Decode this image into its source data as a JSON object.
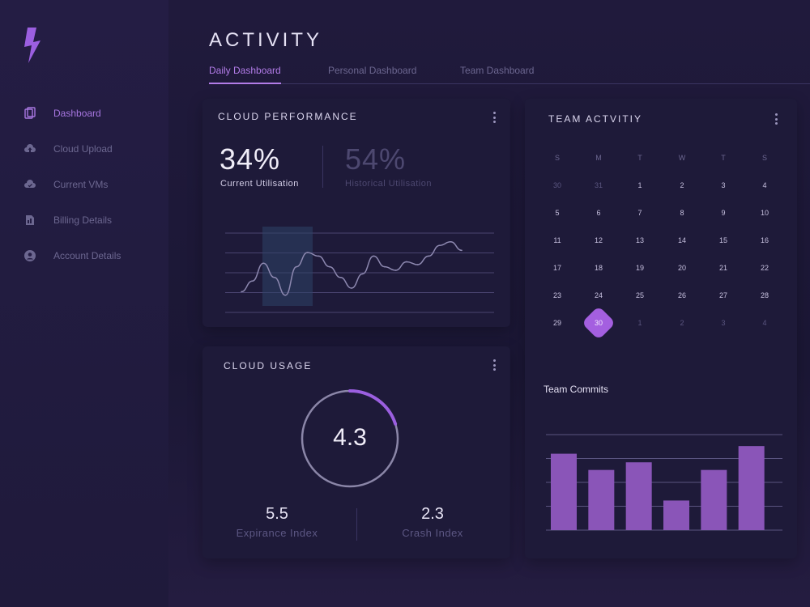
{
  "sidebar": {
    "items": [
      {
        "label": "Dashboard",
        "icon": "copy-icon",
        "active": true
      },
      {
        "label": "Cloud Upload",
        "icon": "cloud-upload-icon",
        "active": false
      },
      {
        "label": "Current VMs",
        "icon": "cloud-icon",
        "active": false
      },
      {
        "label": "Billing Details",
        "icon": "document-icon",
        "active": false
      },
      {
        "label": "Account Details",
        "icon": "user-circle-icon",
        "active": false
      }
    ]
  },
  "header": {
    "title": "ACTIVITY",
    "tabs": [
      {
        "label": "Daily Dashboard",
        "active": true
      },
      {
        "label": "Personal Dashboard",
        "active": false
      },
      {
        "label": "Team Dashboard",
        "active": false
      }
    ]
  },
  "cloud_performance": {
    "title": "CLOUD PERFORMANCE",
    "current_value": "34%",
    "current_label": "Current Utilisation",
    "historical_value": "54%",
    "historical_label": "Historical Utilisation"
  },
  "cloud_usage": {
    "title": "CLOUD USAGE",
    "gauge_value": "4.3",
    "gauge_fraction": 0.2,
    "expirance_value": "5.5",
    "expirance_label": "Expirance Index",
    "crash_value": "2.3",
    "crash_label": "Crash Index"
  },
  "team_activity": {
    "title": "TEAM ACTVITIY",
    "weekdays": [
      "S",
      "M",
      "T",
      "W",
      "T",
      "S"
    ],
    "weeks": [
      [
        "30",
        "31",
        "1",
        "2",
        "3",
        "4"
      ],
      [
        "5",
        "6",
        "7",
        "8",
        "9",
        "10"
      ],
      [
        "11",
        "12",
        "13",
        "14",
        "15",
        "16"
      ],
      [
        "17",
        "18",
        "19",
        "20",
        "21",
        "22"
      ],
      [
        "23",
        "24",
        "25",
        "26",
        "27",
        "28"
      ],
      [
        "29",
        "30",
        "1",
        "2",
        "3",
        "4"
      ]
    ],
    "selected": "30"
  },
  "team_commits": {
    "title": "Team Commits"
  },
  "colors": {
    "accent": "#a45fe0",
    "bar": "#8a55b8",
    "line": "#8d88b0"
  },
  "chart_data": [
    {
      "type": "line",
      "x": [
        0,
        1,
        2,
        3,
        4,
        5,
        6,
        7,
        8,
        9,
        10,
        11,
        12,
        13,
        14,
        15,
        16,
        17,
        18,
        19,
        20
      ],
      "values": [
        20,
        35,
        60,
        40,
        15,
        55,
        75,
        70,
        55,
        40,
        25,
        45,
        70,
        55,
        50,
        62,
        58,
        70,
        85,
        90,
        78
      ],
      "ylim": [
        0,
        100
      ]
    },
    {
      "type": "bar",
      "values": [
        80,
        63,
        71,
        31,
        63,
        88
      ],
      "ylim": [
        0,
        100
      ]
    }
  ]
}
